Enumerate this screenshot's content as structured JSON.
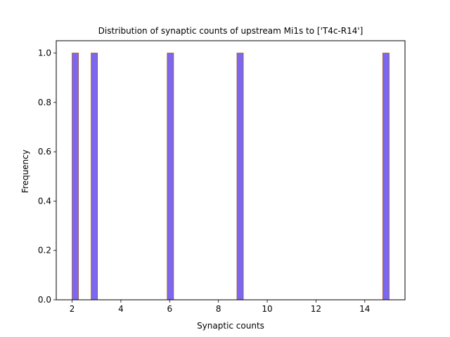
{
  "chart_data": {
    "type": "bar",
    "title": "Distribution of synaptic counts of upstream Mi1s to ['T4c-R14']",
    "xlabel": "Synaptic counts",
    "ylabel": "Frequency",
    "xlim": [
      1.35,
      15.65
    ],
    "ylim": [
      0,
      1.05
    ],
    "xticks": [
      2,
      4,
      6,
      8,
      10,
      12,
      14
    ],
    "yticks": [
      0.0,
      0.2,
      0.4,
      0.6,
      0.8,
      1.0
    ],
    "xtick_labels": [
      "2",
      "4",
      "6",
      "8",
      "10",
      "12",
      "14"
    ],
    "ytick_labels": [
      "0.0",
      "0.2",
      "0.4",
      "0.6",
      "0.8",
      "1.0"
    ],
    "bins": [
      {
        "x0": 2.0,
        "x1": 2.26,
        "count": 1
      },
      {
        "x0": 2.78,
        "x1": 3.04,
        "count": 1
      },
      {
        "x0": 5.9,
        "x1": 6.16,
        "count": 1
      },
      {
        "x0": 8.76,
        "x1": 9.02,
        "count": 1
      },
      {
        "x0": 14.74,
        "x1": 15.0,
        "count": 1
      }
    ],
    "bar_color": "#7b68ee",
    "bar_edge_color": "#a0522d",
    "grid": false,
    "legend": false
  }
}
